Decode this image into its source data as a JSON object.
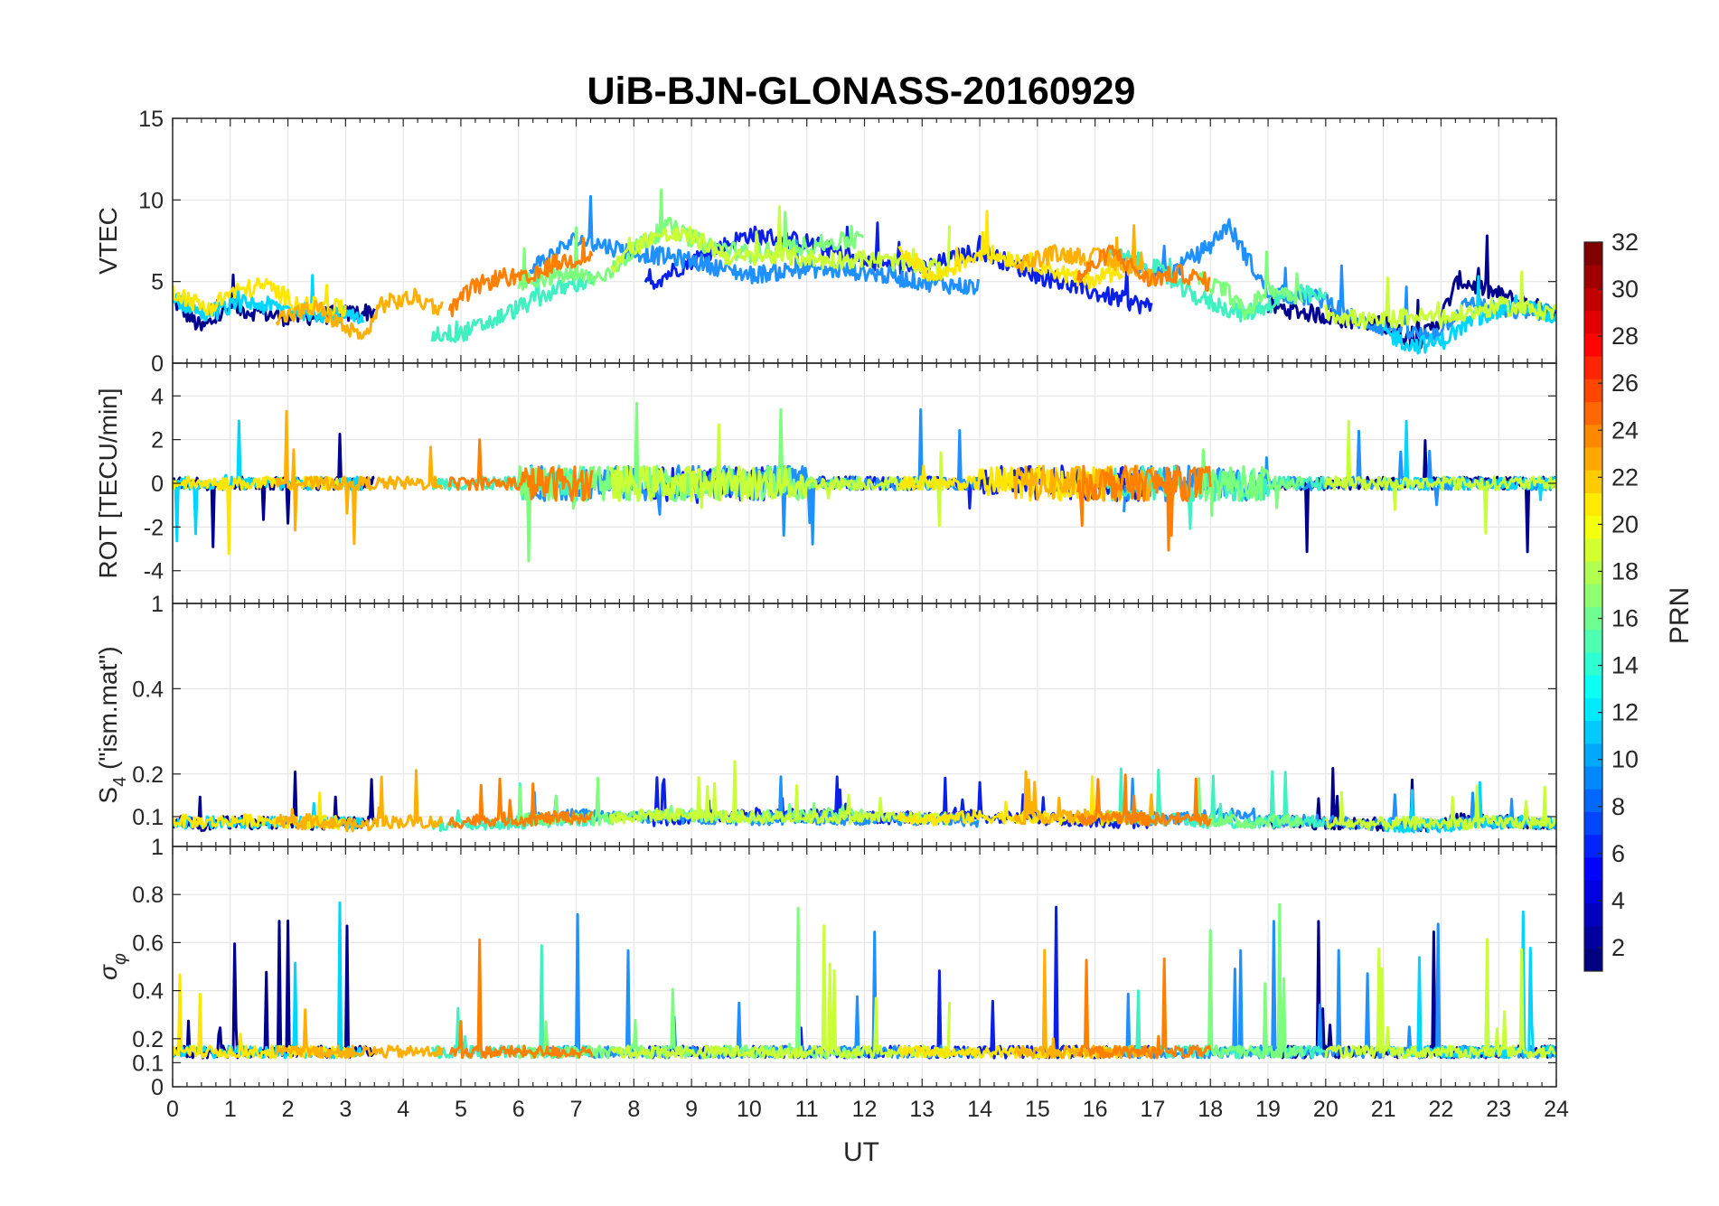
{
  "chart_data": {
    "type": "line",
    "title": "UiB-BJN-GLONASS-20160929",
    "xlabel": "UT",
    "xlim": [
      0,
      24
    ],
    "x_ticks": [
      "0",
      "1",
      "2",
      "3",
      "4",
      "5",
      "6",
      "7",
      "8",
      "9",
      "10",
      "11",
      "12",
      "13",
      "14",
      "15",
      "16",
      "17",
      "18",
      "19",
      "20",
      "21",
      "22",
      "23",
      "24"
    ],
    "grid": true,
    "panels": [
      {
        "id": "vtec",
        "ylabel": "VTEC",
        "ylim": [
          0,
          15
        ],
        "y_ticks": [
          {
            "value": 0,
            "label": "0"
          },
          {
            "value": 5,
            "label": "5"
          },
          {
            "value": 10,
            "label": "10"
          },
          {
            "value": 15,
            "label": "15"
          }
        ]
      },
      {
        "id": "rot",
        "ylabel": "ROT [TECU/min]",
        "ylim": [
          -5.5,
          5.5
        ],
        "y_ticks": [
          {
            "value": -4,
            "label": "-4"
          },
          {
            "value": -2,
            "label": "-2"
          },
          {
            "value": 0,
            "label": "0"
          },
          {
            "value": 2,
            "label": "2"
          },
          {
            "value": 4,
            "label": "4"
          }
        ]
      },
      {
        "id": "s4",
        "ylabel_base": "S",
        "ylabel_sub": "4",
        "ylabel_rest": " (\"ism.mat\")",
        "ylim": [
          0.03,
          0.6
        ],
        "y_ticks": [
          {
            "value": 0.1,
            "label": "0.1"
          },
          {
            "value": 0.2,
            "label": "0.2"
          },
          {
            "value": 0.4,
            "label": "0.4"
          }
        ],
        "top_label": "1"
      },
      {
        "id": "sigma",
        "ylabel_base": "σ",
        "ylabel_sub": "φ",
        "ylim": [
          0,
          1
        ],
        "y_ticks": [
          {
            "value": 0,
            "label": "0"
          },
          {
            "value": 0.1,
            "label": "0.1"
          },
          {
            "value": 0.2,
            "label": "0.2"
          },
          {
            "value": 0.4,
            "label": "0.4"
          },
          {
            "value": 0.6,
            "label": "0.6"
          },
          {
            "value": 0.8,
            "label": "0.8"
          },
          {
            "value": 1,
            "label": "1"
          }
        ]
      }
    ],
    "colorbar": {
      "label": "PRN",
      "range": [
        1,
        32
      ],
      "ticks": [
        "2",
        "4",
        "6",
        "8",
        "10",
        "12",
        "14",
        "16",
        "18",
        "20",
        "22",
        "24",
        "26",
        "28",
        "30",
        "32"
      ],
      "colormap": "jet"
    },
    "series_colors": [
      "#00008f",
      "#0a1fe8",
      "#1e90ff",
      "#00d5ff",
      "#3ff0c0",
      "#7cff7c",
      "#c9ff36",
      "#ffe600",
      "#ffb000",
      "#ff8000"
    ],
    "series": [
      {
        "name": "PRN 1",
        "prn": 1,
        "color_index": 0,
        "vtec": [
          [
            0,
            3.9
          ],
          [
            0.5,
            2.1
          ],
          [
            1,
            3.4
          ],
          [
            2,
            2.8
          ],
          [
            3,
            3.0
          ],
          [
            3.5,
            3.2
          ]
        ],
        "vtec_b": [
          [
            19,
            3.5
          ],
          [
            20,
            2.9
          ],
          [
            21,
            2.3
          ],
          [
            21.6,
            1.3
          ],
          [
            22,
            2.8
          ],
          [
            22.3,
            5.1
          ],
          [
            23,
            4.2
          ],
          [
            24,
            3.0
          ]
        ]
      },
      {
        "name": "PRN 3",
        "prn": 3,
        "color_index": 1,
        "vtec": [
          [
            8.2,
            4.7
          ],
          [
            9,
            6.3
          ],
          [
            10,
            7.9
          ],
          [
            11,
            7.4
          ],
          [
            12,
            6.2
          ],
          [
            13,
            5.8
          ],
          [
            14,
            6.9
          ],
          [
            15,
            5.4
          ],
          [
            16,
            4.3
          ],
          [
            17,
            3.4
          ]
        ]
      },
      {
        "name": "PRN 7",
        "prn": 7,
        "color_index": 2,
        "vtec": [
          [
            6.2,
            5.8
          ],
          [
            7,
            7.6
          ],
          [
            8,
            6.8
          ],
          [
            9,
            6.3
          ],
          [
            10,
            5.4
          ],
          [
            11,
            5.8
          ],
          [
            12,
            5.6
          ],
          [
            13,
            5.0
          ],
          [
            14,
            4.6
          ]
        ],
        "vtec_b": [
          [
            16.5,
            6.2
          ],
          [
            17.3,
            5.5
          ],
          [
            18,
            7.2
          ],
          [
            18.3,
            8.5
          ],
          [
            19,
            4.3
          ],
          [
            20,
            3.9
          ],
          [
            20.5,
            2.7
          ],
          [
            21,
            2.2
          ],
          [
            21.8,
            1.6
          ],
          [
            22.5,
            3.7
          ],
          [
            23,
            3.2
          ],
          [
            24,
            3.2
          ]
        ]
      },
      {
        "name": "PRN 11",
        "prn": 11,
        "color_index": 3,
        "vtec": [
          [
            0,
            4.1
          ],
          [
            0.5,
            3.0
          ],
          [
            1.3,
            3.7
          ],
          [
            2,
            3.3
          ],
          [
            3,
            2.9
          ],
          [
            3.3,
            2.5
          ]
        ],
        "vtec_b": [
          [
            21,
            1.9
          ],
          [
            21.5,
            1.1
          ],
          [
            22,
            1.3
          ],
          [
            22.6,
            2.8
          ],
          [
            23.3,
            3.6
          ],
          [
            24,
            2.8
          ]
        ]
      },
      {
        "name": "PRN 14",
        "prn": 14,
        "color_index": 4,
        "vtec": [
          [
            4.5,
            1.8
          ],
          [
            5,
            1.8
          ],
          [
            5.5,
            2.5
          ],
          [
            6,
            3.4
          ],
          [
            6.6,
            4.4
          ],
          [
            7.3,
            5.2
          ]
        ],
        "vtec_b": [
          [
            16.2,
            6.7
          ],
          [
            17,
            6.0
          ],
          [
            17.5,
            4.5
          ],
          [
            18,
            3.7
          ],
          [
            18.6,
            3.0
          ],
          [
            19.5,
            4.3
          ],
          [
            20,
            4.0
          ]
        ]
      },
      {
        "name": "PRN 17",
        "prn": 17,
        "color_index": 5,
        "vtec": [
          [
            6,
            4.9
          ],
          [
            6.7,
            5.4
          ],
          [
            7.5,
            5.2
          ],
          [
            8,
            7.0
          ],
          [
            8.6,
            8.4
          ],
          [
            9.2,
            7.3
          ],
          [
            10,
            6.7
          ],
          [
            11,
            7.2
          ],
          [
            12,
            7.6
          ]
        ],
        "vtec_b": [
          [
            17.8,
            5.1
          ],
          [
            18.3,
            4.4
          ],
          [
            18.6,
            3.0
          ],
          [
            19,
            4.6
          ],
          [
            19.6,
            4.1
          ]
        ]
      },
      {
        "name": "PRN 19",
        "prn": 19,
        "color_index": 6,
        "vtec": [
          [
            7.6,
            5.9
          ],
          [
            8.3,
            7.8
          ],
          [
            9,
            7.8
          ],
          [
            9.7,
            6.4
          ],
          [
            10.5,
            6.6
          ],
          [
            11.3,
            6.3
          ],
          [
            12,
            6.4
          ],
          [
            13,
            6.0
          ],
          [
            13.5,
            5.6
          ]
        ],
        "vtec_b": [
          [
            20,
            3.1
          ],
          [
            20.8,
            2.5
          ],
          [
            21.5,
            2.9
          ],
          [
            22,
            2.7
          ],
          [
            23,
            3.5
          ],
          [
            24,
            3.1
          ]
        ]
      },
      {
        "name": "PRN 21",
        "prn": 21,
        "color_index": 7,
        "vtec": [
          [
            0,
            4.5
          ],
          [
            0.6,
            3.3
          ],
          [
            1,
            4.3
          ],
          [
            1.6,
            4.8
          ],
          [
            2.2,
            3.6
          ],
          [
            3,
            3.3
          ]
        ],
        "vtec_b": [
          [
            12.6,
            7.1
          ],
          [
            13.2,
            5.2
          ],
          [
            14,
            6.8
          ],
          [
            15,
            6.1
          ],
          [
            15.8,
            5.0
          ],
          [
            16.5,
            5.8
          ]
        ]
      },
      {
        "name": "PRN 22",
        "prn": 22,
        "color_index": 8,
        "vtec": [
          [
            1.8,
            2.7
          ],
          [
            2.5,
            3.4
          ],
          [
            3.3,
            1.4
          ],
          [
            3.6,
            3.6
          ],
          [
            4.2,
            4.0
          ],
          [
            4.7,
            3.3
          ]
        ],
        "vtec_b": [
          [
            14.6,
            6.0
          ],
          [
            15.3,
            6.7
          ],
          [
            16,
            6.5
          ],
          [
            16.5,
            6.1
          ],
          [
            17,
            5.2
          ]
        ]
      },
      {
        "name": "PRN 24",
        "prn": 24,
        "color_index": 9,
        "vtec": [
          [
            4.8,
            3.1
          ],
          [
            5.2,
            4.6
          ],
          [
            5.7,
            5.3
          ],
          [
            6.2,
            5.1
          ],
          [
            6.6,
            6.1
          ],
          [
            7.3,
            6.6
          ]
        ],
        "vtec_b": [
          [
            15.7,
            5.2
          ],
          [
            16.3,
            6.9
          ],
          [
            16.9,
            5.1
          ],
          [
            17.5,
            5.5
          ],
          [
            18,
            4.9
          ]
        ]
      }
    ]
  }
}
